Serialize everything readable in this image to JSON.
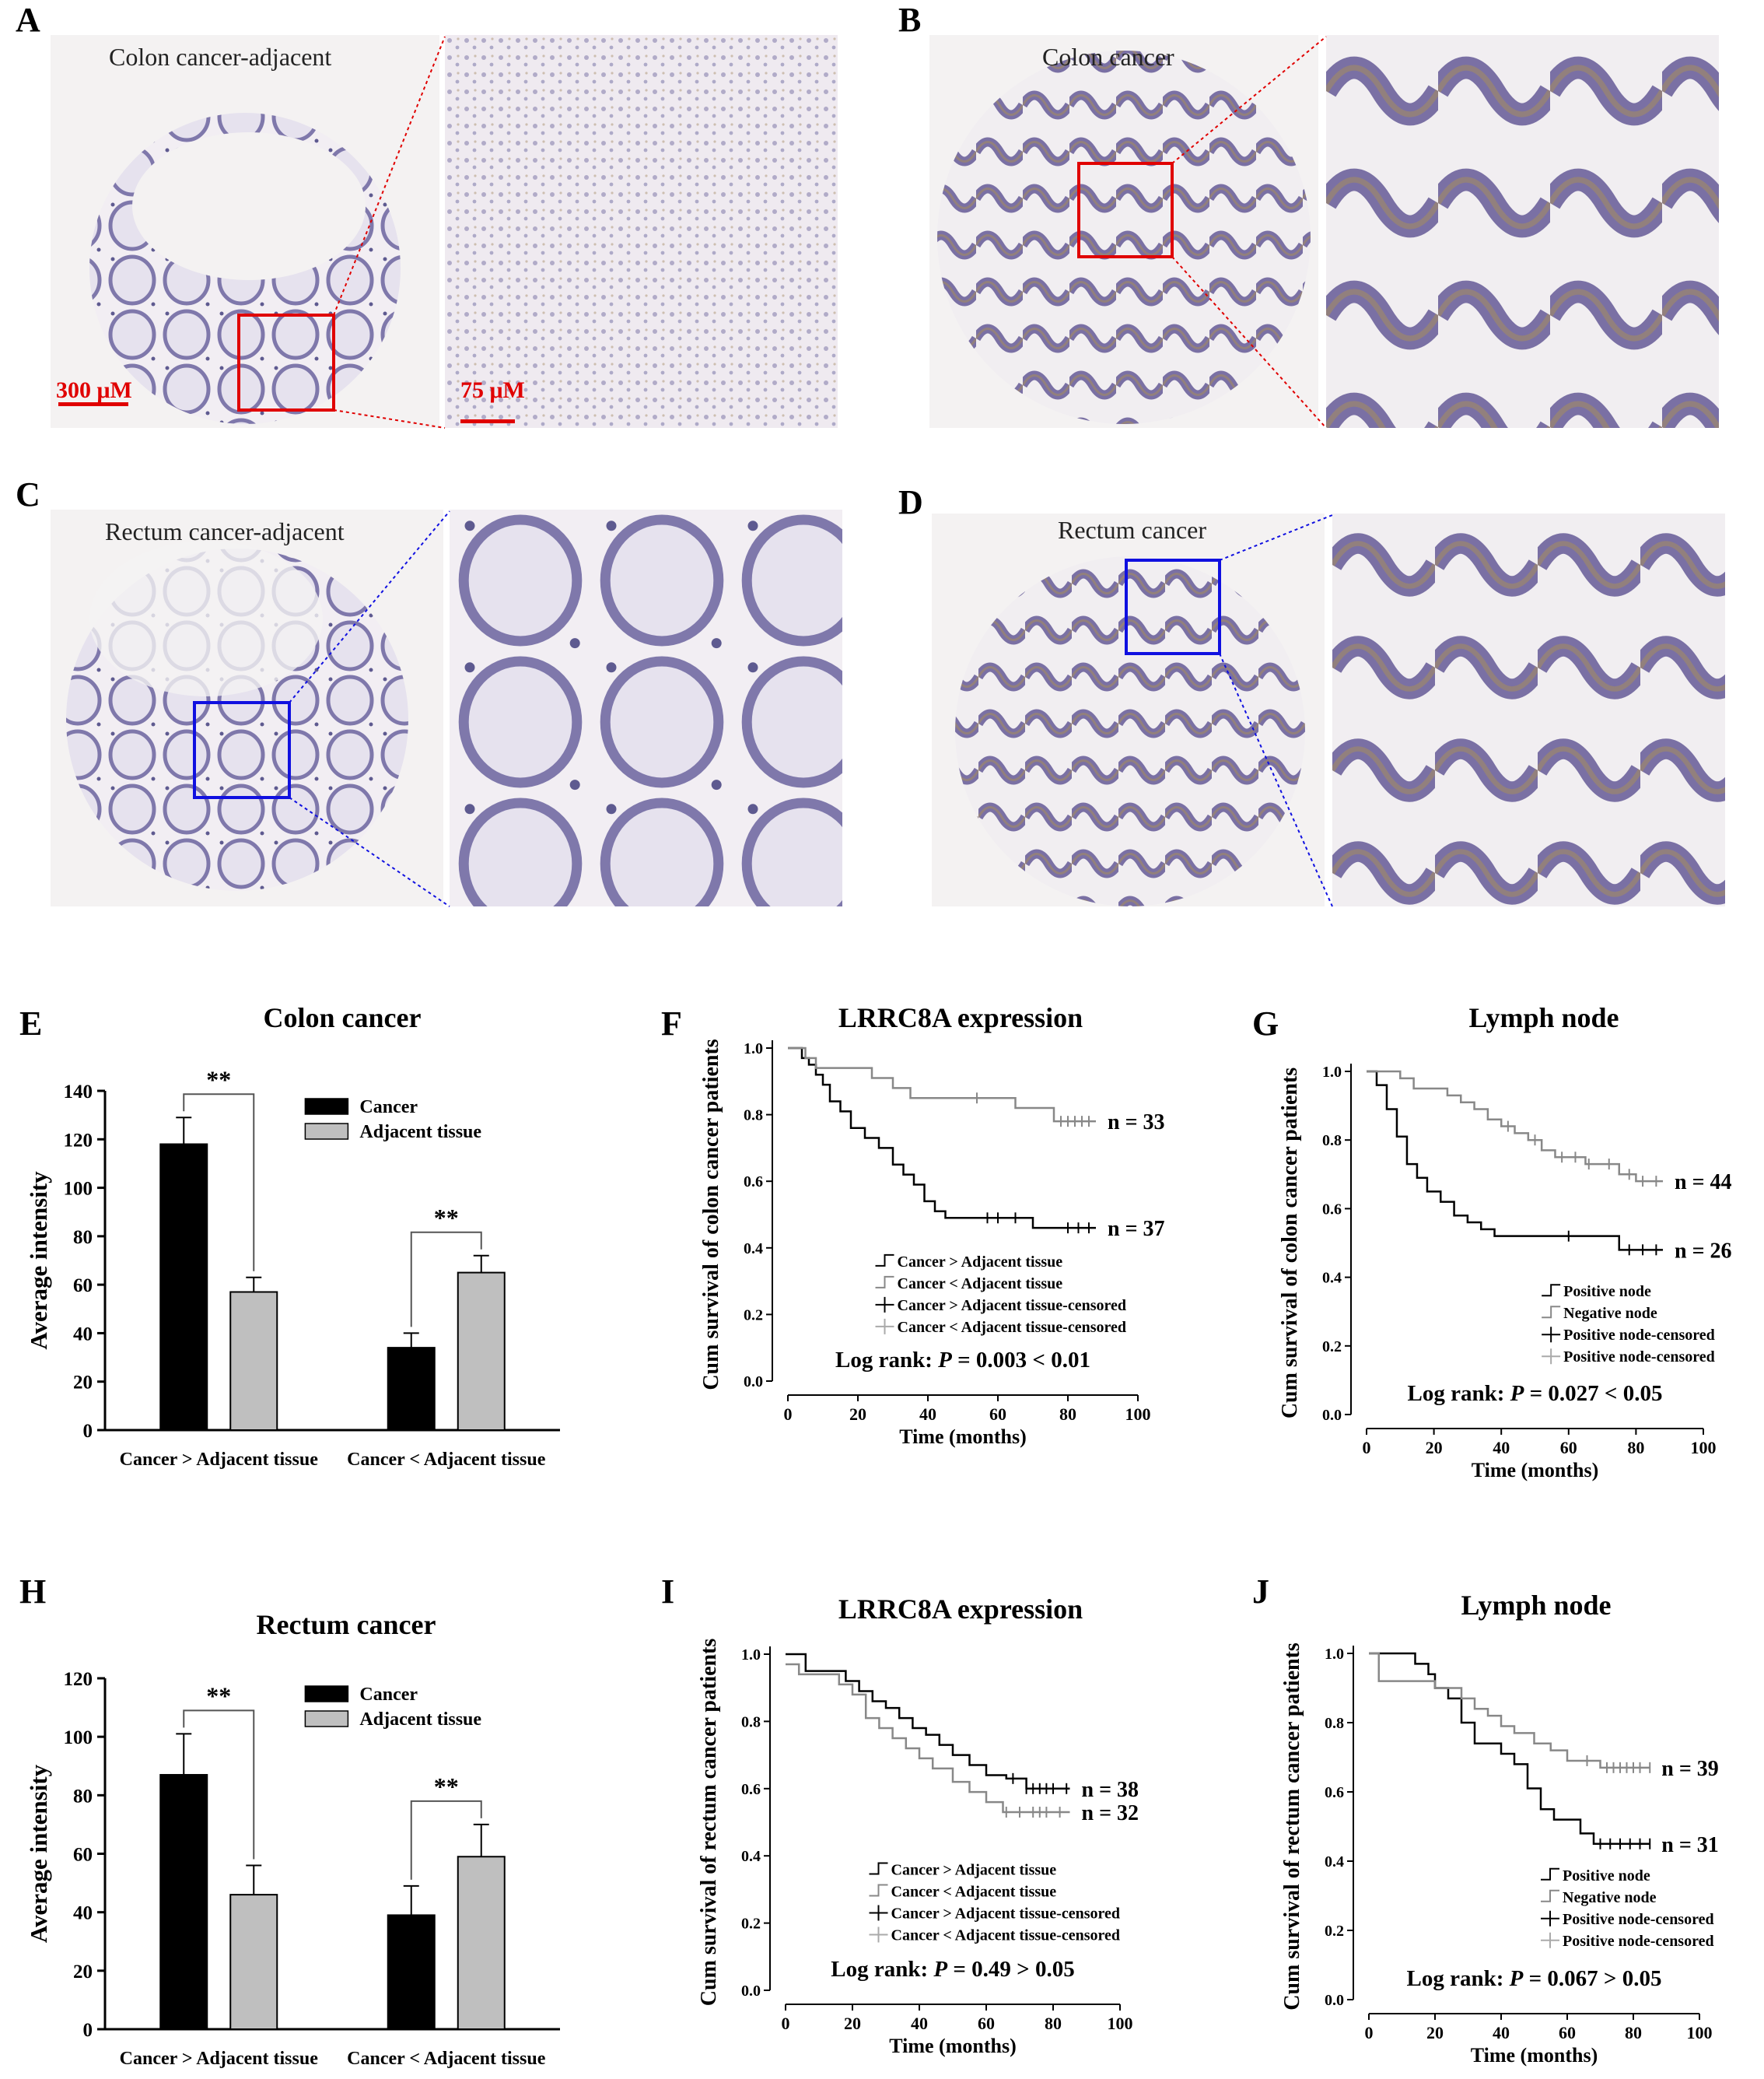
{
  "panels": {
    "A": {
      "letter": "A",
      "title": "Colon cancer-adjacent",
      "scale_main": "300 μM",
      "scale_zoom": "75 μM"
    },
    "B": {
      "letter": "B",
      "title": "Colon cancer"
    },
    "C": {
      "letter": "C",
      "title": "Rectum cancer-adjacent"
    },
    "D": {
      "letter": "D",
      "title": "Rectum cancer"
    }
  },
  "colors": {
    "tissue": "#8c84b4",
    "stain": "#a88a5a",
    "box_red": "#e00000",
    "box_blue": "#1010e0",
    "bar_dark": "#000000",
    "bar_light": "#bfbfbf"
  },
  "chart_data": [
    {
      "id": "E",
      "letter": "E",
      "type": "bar",
      "title": "Colon cancer",
      "ylabel": "Average intensity",
      "ylim": [
        0,
        140
      ],
      "yticks": [
        0,
        20,
        40,
        60,
        80,
        100,
        120,
        140
      ],
      "categories": [
        "Cancer > Adjacent tissue",
        "Cancer < Adjacent tissue"
      ],
      "series": [
        {
          "name": "Cancer",
          "values": [
            118,
            34
          ],
          "errors": [
            11,
            6
          ]
        },
        {
          "name": "Adjacent tissue",
          "values": [
            57,
            65
          ],
          "errors": [
            6,
            7
          ]
        }
      ],
      "significance": [
        "**",
        "**"
      ]
    },
    {
      "id": "F",
      "letter": "F",
      "type": "line",
      "title": "LRRC8A expression",
      "ylabel": "Cum survival of colon cancer patients",
      "xlabel": "Time (months)",
      "xlim": [
        0,
        100
      ],
      "ylim": [
        0,
        1.0
      ],
      "xticks": [
        0,
        20,
        40,
        60,
        80,
        100
      ],
      "yticks": [
        0.0,
        0.2,
        0.4,
        0.6,
        0.8,
        1.0
      ],
      "series": [
        {
          "name": "Cancer > Adjacent tissue",
          "n_label": "n = 37",
          "color": "#000000",
          "x": [
            0,
            4,
            6,
            8,
            10,
            12,
            15,
            18,
            22,
            26,
            30,
            33,
            36,
            39,
            42,
            45,
            50,
            55,
            70,
            80,
            88
          ],
          "y": [
            1.0,
            0.97,
            0.95,
            0.92,
            0.89,
            0.84,
            0.81,
            0.76,
            0.73,
            0.7,
            0.65,
            0.62,
            0.59,
            0.54,
            0.51,
            0.49,
            0.49,
            0.49,
            0.46,
            0.46,
            0.46
          ],
          "censored": [
            57,
            60,
            65,
            80,
            83,
            86
          ]
        },
        {
          "name": "Cancer < Adjacent tissue",
          "n_label": "n = 33",
          "color": "#888888",
          "x": [
            0,
            5,
            8,
            12,
            20,
            24,
            30,
            35,
            47,
            56,
            65,
            70,
            76,
            88
          ],
          "y": [
            1.0,
            0.97,
            0.94,
            0.94,
            0.94,
            0.91,
            0.88,
            0.85,
            0.85,
            0.85,
            0.82,
            0.82,
            0.78,
            0.78
          ],
          "censored": [
            54,
            78,
            80,
            82,
            84,
            86
          ]
        }
      ],
      "legend": [
        "Cancer > Adjacent tissue",
        "Cancer < Adjacent tissue",
        "Cancer > Adjacent tissue-censored",
        "Cancer < Adjacent tissue-censored"
      ],
      "annotation": {
        "prefix": "Log rank: ",
        "p": "P",
        "suffix": " = 0.003 < 0.01"
      }
    },
    {
      "id": "G",
      "letter": "G",
      "type": "line",
      "title": "Lymph node",
      "ylabel": "Cum survival of colon cancer patients",
      "xlabel": "Time (months)",
      "xlim": [
        0,
        100
      ],
      "ylim": [
        0,
        1.0
      ],
      "xticks": [
        0,
        20,
        40,
        60,
        80,
        100
      ],
      "yticks": [
        0.0,
        0.2,
        0.4,
        0.6,
        0.8,
        1.0
      ],
      "series": [
        {
          "name": "Positive node",
          "n_label": "n = 26",
          "color": "#000000",
          "x": [
            0,
            3,
            6,
            9,
            12,
            15,
            18,
            22,
            26,
            30,
            34,
            38,
            50,
            60,
            75,
            88
          ],
          "y": [
            1.0,
            0.96,
            0.89,
            0.81,
            0.73,
            0.69,
            0.65,
            0.62,
            0.58,
            0.56,
            0.54,
            0.52,
            0.52,
            0.52,
            0.48,
            0.48
          ],
          "censored": [
            60,
            78,
            82,
            86
          ]
        },
        {
          "name": "Negative node",
          "n_label": "n = 44",
          "color": "#888888",
          "x": [
            0,
            10,
            14,
            20,
            24,
            28,
            32,
            36,
            40,
            44,
            48,
            52,
            56,
            60,
            65,
            70,
            75,
            80,
            88
          ],
          "y": [
            1.0,
            0.98,
            0.95,
            0.95,
            0.93,
            0.91,
            0.89,
            0.86,
            0.84,
            0.82,
            0.8,
            0.77,
            0.75,
            0.75,
            0.73,
            0.73,
            0.7,
            0.68,
            0.68
          ],
          "censored": [
            42,
            50,
            58,
            62,
            66,
            72,
            78,
            82,
            86
          ]
        }
      ],
      "legend": [
        "Positive node",
        "Negative node",
        "Positive node-censored",
        "Positive node-censored"
      ],
      "annotation": {
        "prefix": "Log rank: ",
        "p": "P",
        "suffix": " = 0.027 < 0.05"
      }
    },
    {
      "id": "H",
      "letter": "H",
      "type": "bar",
      "title": "Rectum cancer",
      "ylabel": "Average intensity",
      "ylim": [
        0,
        120
      ],
      "yticks": [
        0,
        20,
        40,
        60,
        80,
        100,
        120
      ],
      "categories": [
        "Cancer > Adjacent tissue",
        "Cancer < Adjacent tissue"
      ],
      "series": [
        {
          "name": "Cancer",
          "values": [
            87,
            39
          ],
          "errors": [
            14,
            10
          ]
        },
        {
          "name": "Adjacent tissue",
          "values": [
            46,
            59
          ],
          "errors": [
            10,
            11
          ]
        }
      ],
      "significance": [
        "**",
        "**"
      ]
    },
    {
      "id": "I",
      "letter": "I",
      "type": "line",
      "title": "LRRC8A expression",
      "ylabel": "Cum survival of rectum cancer patients",
      "xlabel": "Time (months)",
      "xlim": [
        0,
        100
      ],
      "ylim": [
        0,
        1.0
      ],
      "xticks": [
        0,
        20,
        40,
        60,
        80,
        100
      ],
      "yticks": [
        0.0,
        0.2,
        0.4,
        0.6,
        0.8,
        1.0
      ],
      "series": [
        {
          "name": "Cancer > Adjacent tissue",
          "n_label": "n = 38",
          "color": "#000000",
          "x": [
            0,
            6,
            12,
            18,
            22,
            26,
            30,
            34,
            38,
            42,
            46,
            50,
            55,
            60,
            66,
            72,
            85
          ],
          "y": [
            1.0,
            0.95,
            0.95,
            0.92,
            0.89,
            0.86,
            0.84,
            0.81,
            0.78,
            0.76,
            0.73,
            0.7,
            0.67,
            0.64,
            0.63,
            0.6,
            0.6
          ],
          "censored": [
            68,
            72,
            74,
            76,
            78,
            80,
            84
          ]
        },
        {
          "name": "Cancer < Adjacent tissue",
          "n_label": "n = 32",
          "color": "#888888",
          "x": [
            0,
            4,
            10,
            16,
            20,
            24,
            28,
            32,
            36,
            40,
            44,
            50,
            55,
            60,
            65,
            85
          ],
          "y": [
            0.97,
            0.94,
            0.94,
            0.91,
            0.88,
            0.81,
            0.78,
            0.75,
            0.72,
            0.69,
            0.66,
            0.62,
            0.59,
            0.56,
            0.53,
            0.53
          ],
          "censored": [
            66,
            70,
            74,
            76,
            78,
            82
          ]
        }
      ],
      "legend": [
        "Cancer > Adjacent tissue",
        "Cancer < Adjacent tissue",
        "Cancer > Adjacent tissue-censored",
        "Cancer < Adjacent tissue-censored"
      ],
      "annotation": {
        "prefix": "Log rank: ",
        "p": "P",
        "suffix": " = 0.49 > 0.05"
      }
    },
    {
      "id": "J",
      "letter": "J",
      "type": "line",
      "title": "Lymph node",
      "ylabel": "Cum survival of rectum cancer patients",
      "xlabel": "Time (months)",
      "xlim": [
        0,
        100
      ],
      "ylim": [
        0,
        1.0
      ],
      "xticks": [
        0,
        20,
        40,
        60,
        80,
        100
      ],
      "yticks": [
        0.0,
        0.2,
        0.4,
        0.6,
        0.8,
        1.0
      ],
      "series": [
        {
          "name": "Positive node",
          "n_label": "n = 31",
          "color": "#000000",
          "x": [
            0,
            8,
            14,
            18,
            20,
            24,
            28,
            32,
            36,
            40,
            44,
            48,
            52,
            56,
            60,
            64,
            68,
            85
          ],
          "y": [
            1.0,
            1.0,
            0.97,
            0.94,
            0.9,
            0.87,
            0.8,
            0.74,
            0.74,
            0.71,
            0.68,
            0.61,
            0.55,
            0.52,
            0.52,
            0.48,
            0.45,
            0.45
          ],
          "censored": [
            70,
            73,
            76,
            79,
            82,
            85
          ]
        },
        {
          "name": "Negative node",
          "n_label": "n = 39",
          "color": "#888888",
          "x": [
            0,
            3,
            12,
            20,
            28,
            32,
            36,
            40,
            44,
            50,
            55,
            60,
            65,
            70,
            85
          ],
          "y": [
            1.0,
            0.92,
            0.92,
            0.9,
            0.87,
            0.84,
            0.82,
            0.79,
            0.77,
            0.74,
            0.72,
            0.69,
            0.69,
            0.67,
            0.67
          ],
          "censored": [
            66,
            72,
            74,
            76,
            78,
            80,
            82,
            85
          ]
        }
      ],
      "legend": [
        "Positive node",
        "Negative node",
        "Positive node-censored",
        "Positive node-censored"
      ],
      "annotation": {
        "prefix": "Log rank: ",
        "p": "P",
        "suffix": " = 0.067 > 0.05"
      }
    }
  ]
}
